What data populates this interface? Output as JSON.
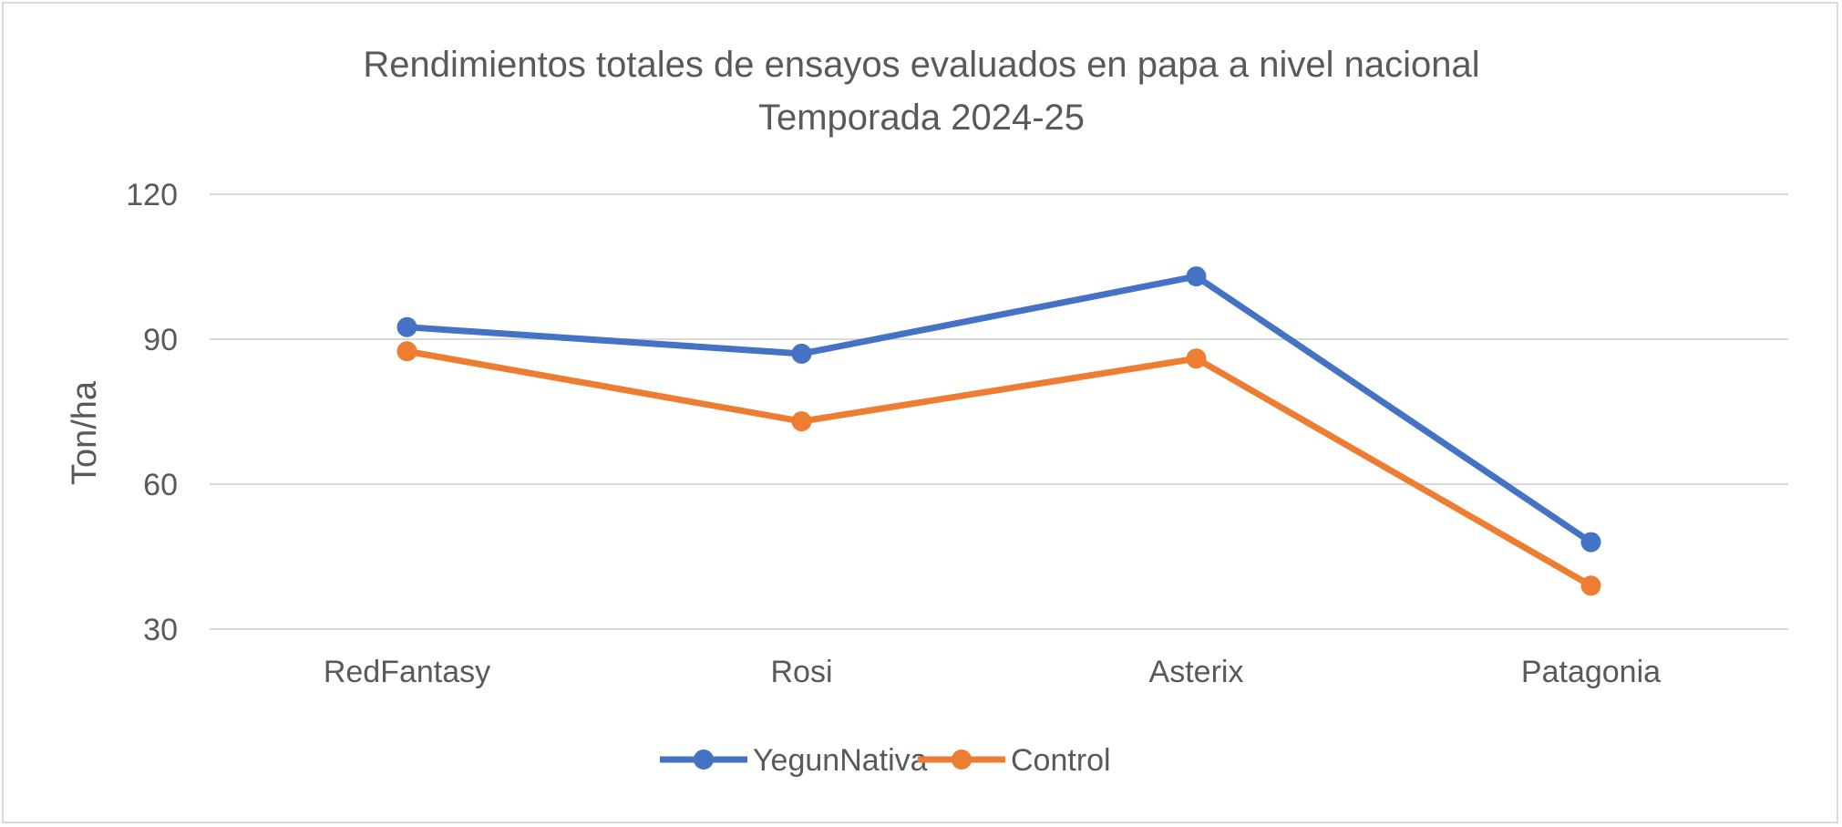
{
  "chart_data": {
    "type": "line",
    "title": "Rendimientos totales de ensayos evaluados en papa a nivel nacional",
    "subtitle": "Temporada 2024-25",
    "xlabel": "",
    "ylabel": "Ton/ha",
    "ylim": [
      30,
      120
    ],
    "yticks": [
      "30",
      "60",
      "90",
      "120"
    ],
    "grid": true,
    "legend_position": "bottom",
    "categories": [
      "RedFantasy",
      "Rosi",
      "Asterix",
      "Patagonia"
    ],
    "series": [
      {
        "name": "YegunNativa",
        "color": "#4472C4",
        "values": [
          92.5,
          87.0,
          103.0,
          48.0
        ]
      },
      {
        "name": "Control",
        "color": "#ED7D31",
        "values": [
          87.5,
          73.0,
          86.0,
          39.0
        ]
      }
    ]
  }
}
